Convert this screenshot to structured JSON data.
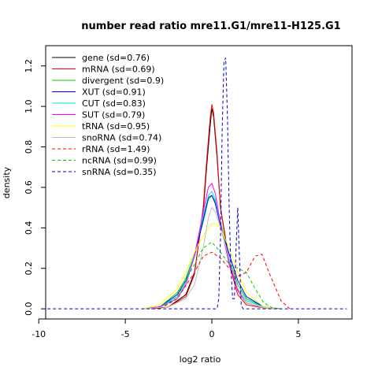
{
  "chart_data": {
    "type": "line",
    "title": "number read ratio mre11.G1/mre11-H125.G1",
    "xlabel": "log2 ratio",
    "ylabel": "density",
    "xlim": [
      -9.6,
      8.1
    ],
    "ylim": [
      -0.05,
      1.3
    ],
    "xticks": [
      -10,
      -5,
      0,
      5
    ],
    "xtick_labels": [
      "-10",
      "-5",
      "0",
      "5"
    ],
    "yticks": [
      0.0,
      0.2,
      0.4,
      0.6,
      0.8,
      1.0,
      1.2
    ],
    "ytick_labels": [
      "0.0",
      "0.2",
      "0.4",
      "0.6",
      "0.8",
      "1.0",
      "1.2"
    ],
    "grid": false,
    "legend_position": "top-left",
    "series": [
      {
        "name": "gene (sd=0.76)",
        "color": "#000000",
        "dash": "solid",
        "x": [
          -3.5,
          -2.5,
          -1.5,
          -1.0,
          -0.5,
          -0.3,
          -0.1,
          0.0,
          0.1,
          0.3,
          0.5,
          1.0,
          1.5,
          2.0,
          3.0,
          4.0
        ],
        "y": [
          0.0,
          0.01,
          0.07,
          0.18,
          0.48,
          0.7,
          0.9,
          0.99,
          0.95,
          0.75,
          0.5,
          0.24,
          0.09,
          0.03,
          0.005,
          0.0
        ]
      },
      {
        "name": "mRNA (sd=0.69)",
        "color": "#ff0000",
        "dash": "solid",
        "x": [
          -3.5,
          -2.5,
          -1.5,
          -1.0,
          -0.5,
          -0.3,
          -0.1,
          0.0,
          0.1,
          0.3,
          0.5,
          1.0,
          1.5,
          2.0,
          3.0,
          4.0
        ],
        "y": [
          0.0,
          0.01,
          0.06,
          0.17,
          0.5,
          0.73,
          0.94,
          1.01,
          0.97,
          0.77,
          0.5,
          0.22,
          0.07,
          0.02,
          0.004,
          0.0
        ]
      },
      {
        "name": "divergent (sd=0.9)",
        "color": "#00cd00",
        "dash": "solid",
        "x": [
          -4.0,
          -3.0,
          -2.0,
          -1.5,
          -1.0,
          -0.5,
          -0.2,
          0.0,
          0.2,
          0.5,
          1.0,
          1.5,
          2.0,
          3.0,
          4.0
        ],
        "y": [
          0.0,
          0.01,
          0.08,
          0.15,
          0.27,
          0.43,
          0.54,
          0.56,
          0.53,
          0.43,
          0.25,
          0.12,
          0.05,
          0.01,
          0.0
        ]
      },
      {
        "name": "XUT (sd=0.91)",
        "color": "#0000ff",
        "dash": "solid",
        "x": [
          -4.0,
          -3.0,
          -2.0,
          -1.5,
          -1.0,
          -0.5,
          -0.2,
          0.0,
          0.2,
          0.5,
          1.0,
          1.5,
          2.0,
          3.0,
          4.0
        ],
        "y": [
          0.0,
          0.01,
          0.07,
          0.14,
          0.26,
          0.44,
          0.55,
          0.56,
          0.52,
          0.41,
          0.27,
          0.14,
          0.06,
          0.01,
          0.0
        ]
      },
      {
        "name": "CUT (sd=0.83)",
        "color": "#00e5ee",
        "dash": "solid",
        "x": [
          -4.0,
          -3.0,
          -2.0,
          -1.5,
          -1.0,
          -0.5,
          -0.2,
          0.0,
          0.2,
          0.5,
          1.0,
          1.5,
          2.0,
          3.0,
          4.0
        ],
        "y": [
          0.0,
          0.01,
          0.06,
          0.13,
          0.27,
          0.46,
          0.56,
          0.58,
          0.54,
          0.42,
          0.24,
          0.1,
          0.04,
          0.01,
          0.0
        ]
      },
      {
        "name": "SUT (sd=0.79)",
        "color": "#ff00ff",
        "dash": "solid",
        "x": [
          -4.0,
          -3.0,
          -2.0,
          -1.5,
          -1.0,
          -0.5,
          -0.2,
          0.0,
          0.2,
          0.5,
          1.0,
          1.5,
          2.0,
          3.0,
          4.0
        ],
        "y": [
          0.0,
          0.01,
          0.05,
          0.12,
          0.26,
          0.48,
          0.6,
          0.62,
          0.57,
          0.42,
          0.22,
          0.09,
          0.03,
          0.005,
          0.0
        ]
      },
      {
        "name": "tRNA (sd=0.95)",
        "color": "#ffff00",
        "dash": "solid",
        "x": [
          -4.0,
          -3.0,
          -2.0,
          -1.5,
          -1.0,
          -0.5,
          0.0,
          0.3,
          0.6,
          1.0,
          1.5,
          2.0,
          3.0,
          4.0
        ],
        "y": [
          0.0,
          0.02,
          0.1,
          0.18,
          0.28,
          0.36,
          0.42,
          0.42,
          0.38,
          0.3,
          0.18,
          0.08,
          0.01,
          0.0
        ]
      },
      {
        "name": "snoRNA (sd=0.74)",
        "color": "#bebebe",
        "dash": "solid",
        "x": [
          -4.0,
          -2.5,
          -1.5,
          -1.0,
          -0.5,
          -0.2,
          0.0,
          0.2,
          0.5,
          1.0,
          1.5,
          2.0,
          3.0,
          4.0
        ],
        "y": [
          0.0,
          0.01,
          0.05,
          0.12,
          0.3,
          0.45,
          0.5,
          0.48,
          0.4,
          0.25,
          0.1,
          0.03,
          0.005,
          0.0
        ]
      },
      {
        "name": "rRNA (sd=1.49)",
        "color": "#ff0000",
        "dash": "dashed",
        "x": [
          -3.0,
          -2.0,
          -1.0,
          -0.5,
          0.0,
          0.5,
          1.0,
          1.5,
          2.0,
          2.5,
          2.9,
          3.3,
          4.0,
          4.5
        ],
        "y": [
          0.0,
          0.05,
          0.18,
          0.26,
          0.28,
          0.25,
          0.2,
          0.16,
          0.18,
          0.26,
          0.27,
          0.18,
          0.04,
          0.0
        ]
      },
      {
        "name": "ncRNA (sd=0.99)",
        "color": "#00cd00",
        "dash": "dashed",
        "x": [
          -3.0,
          -2.0,
          -1.0,
          -0.5,
          0.0,
          0.5,
          1.0,
          1.5,
          2.0,
          2.5,
          3.0,
          3.5,
          4.0
        ],
        "y": [
          0.0,
          0.06,
          0.22,
          0.3,
          0.33,
          0.28,
          0.22,
          0.2,
          0.18,
          0.1,
          0.03,
          0.005,
          0.0
        ]
      },
      {
        "name": "snRNA (sd=0.35)",
        "color": "#0000cd",
        "dash": "dashed",
        "x": [
          -9.5,
          0.3,
          0.4,
          0.5,
          0.6,
          0.7,
          0.8,
          0.9,
          1.0,
          1.1,
          1.2,
          1.3,
          1.4,
          1.5,
          1.6,
          1.7,
          1.8,
          7.8
        ],
        "y": [
          0.0,
          0.0,
          0.05,
          0.35,
          0.9,
          1.22,
          1.24,
          0.95,
          0.5,
          0.2,
          0.05,
          0.05,
          0.3,
          0.5,
          0.25,
          0.02,
          0.0,
          0.0
        ]
      }
    ]
  }
}
